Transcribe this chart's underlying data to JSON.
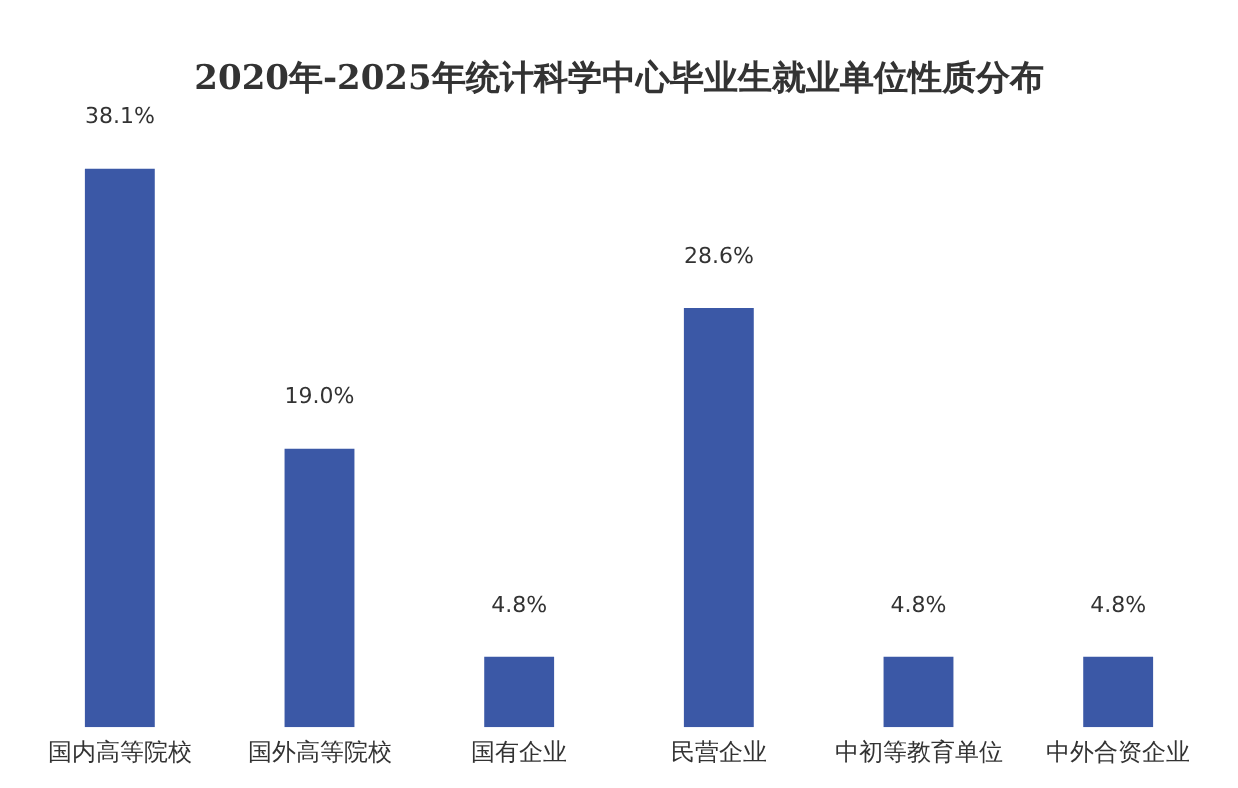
{
  "chart_data": {
    "type": "bar",
    "title": "2020年-2025年统计科学中心毕业生就业单位性质分布",
    "categories": [
      "国内高等院校",
      "国外高等院校",
      "国有企业",
      "民营企业",
      "中初等教育单位",
      "中外合资企业"
    ],
    "values": [
      38.1,
      19.0,
      4.8,
      28.6,
      4.8,
      4.8
    ],
    "value_labels": [
      "38.1%",
      "19.0%",
      "4.8%",
      "28.6%",
      "4.8%",
      "4.8%"
    ],
    "color": "#3b58a6",
    "grid": false,
    "legend": false
  }
}
